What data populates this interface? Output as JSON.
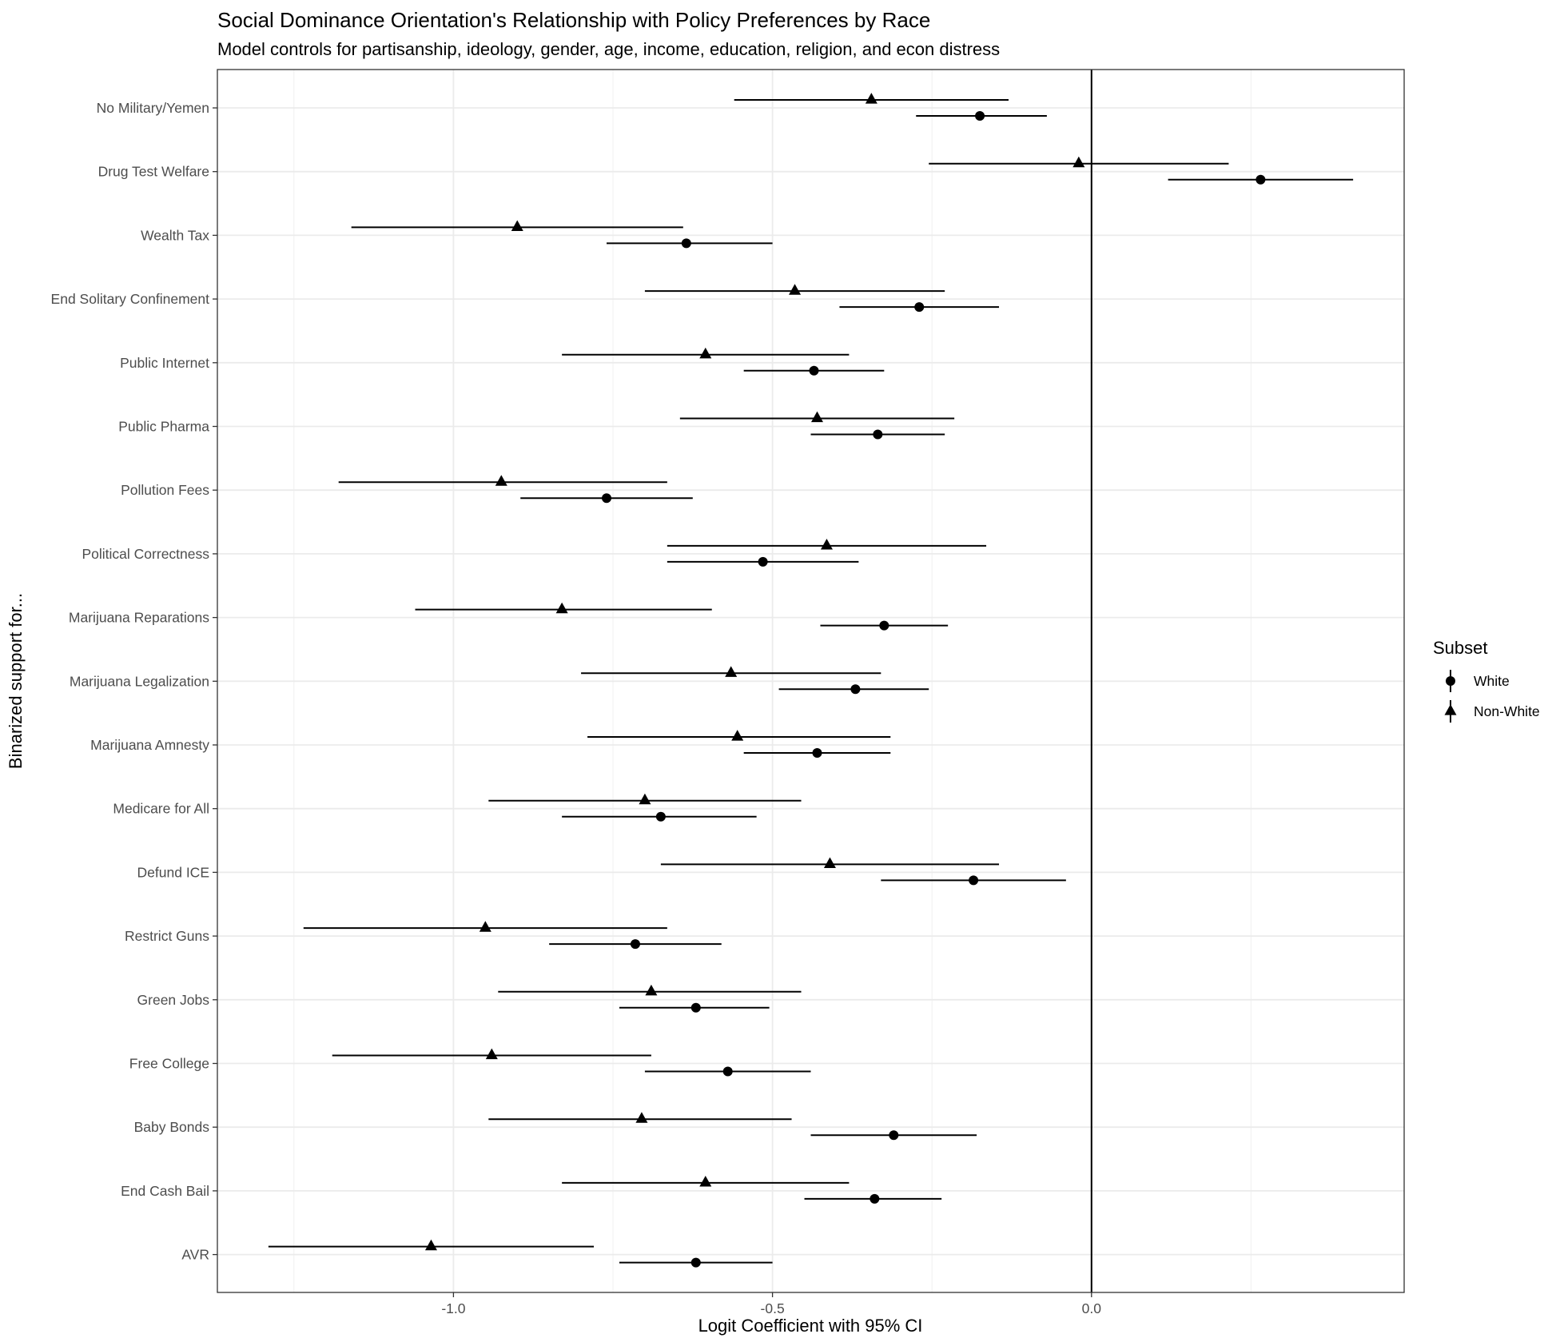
{
  "chart_data": {
    "type": "scatter",
    "title": "Social Dominance Orientation's Relationship with Policy Preferences by Race",
    "subtitle": "Model controls for partisanship, ideology, gender, age, income, education, religion, and econ distress",
    "xlabel": "Logit Coefficient with 95% CI",
    "ylabel": "Binarized support for...",
    "xlim": [
      -1.37,
      0.49
    ],
    "xticks": [
      -1.0,
      -0.5,
      0.0
    ],
    "xtick_labels": [
      "-1.0",
      "-0.5",
      "0.0"
    ],
    "reference_line_x": 0,
    "grid": true,
    "legend_position": "right",
    "legend_title": "Subset",
    "categories": [
      "No Military/Yemen",
      "Drug Test Welfare",
      "Wealth Tax",
      "End Solitary Confinement",
      "Public Internet",
      "Public Pharma",
      "Pollution Fees",
      "Political Correctness",
      "Marijuana Reparations",
      "Marijuana Legalization",
      "Marijuana Amnesty",
      "Medicare for All",
      "Defund ICE",
      "Restrict Guns",
      "Green Jobs",
      "Free College",
      "Baby Bonds",
      "End Cash Bail",
      "AVR"
    ],
    "series": [
      {
        "name": "White",
        "marker": "circle",
        "estimates": [
          -0.175,
          0.265,
          -0.635,
          -0.27,
          -0.435,
          -0.335,
          -0.76,
          -0.515,
          -0.325,
          -0.37,
          -0.43,
          -0.675,
          -0.185,
          -0.715,
          -0.62,
          -0.57,
          -0.31,
          -0.34,
          -0.62
        ],
        "lower": [
          -0.275,
          0.12,
          -0.76,
          -0.395,
          -0.545,
          -0.44,
          -0.895,
          -0.665,
          -0.425,
          -0.49,
          -0.545,
          -0.83,
          -0.33,
          -0.85,
          -0.74,
          -0.7,
          -0.44,
          -0.45,
          -0.74
        ],
        "upper": [
          -0.07,
          0.41,
          -0.5,
          -0.145,
          -0.325,
          -0.23,
          -0.625,
          -0.365,
          -0.225,
          -0.255,
          -0.315,
          -0.525,
          -0.04,
          -0.58,
          -0.505,
          -0.44,
          -0.18,
          -0.235,
          -0.5
        ]
      },
      {
        "name": "Non-White",
        "marker": "triangle",
        "estimates": [
          -0.345,
          -0.02,
          -0.9,
          -0.465,
          -0.605,
          -0.43,
          -0.925,
          -0.415,
          -0.83,
          -0.565,
          -0.555,
          -0.7,
          -0.41,
          -0.95,
          -0.69,
          -0.94,
          -0.705,
          -0.605,
          -1.035
        ],
        "lower": [
          -0.56,
          -0.255,
          -1.16,
          -0.7,
          -0.83,
          -0.645,
          -1.18,
          -0.665,
          -1.06,
          -0.8,
          -0.79,
          -0.945,
          -0.675,
          -1.235,
          -0.93,
          -1.19,
          -0.945,
          -0.83,
          -1.29
        ],
        "upper": [
          -0.13,
          0.215,
          -0.64,
          -0.23,
          -0.38,
          -0.215,
          -0.665,
          -0.165,
          -0.595,
          -0.33,
          -0.315,
          -0.455,
          -0.145,
          -0.665,
          -0.455,
          -0.69,
          -0.47,
          -0.38,
          -0.78
        ]
      }
    ]
  }
}
